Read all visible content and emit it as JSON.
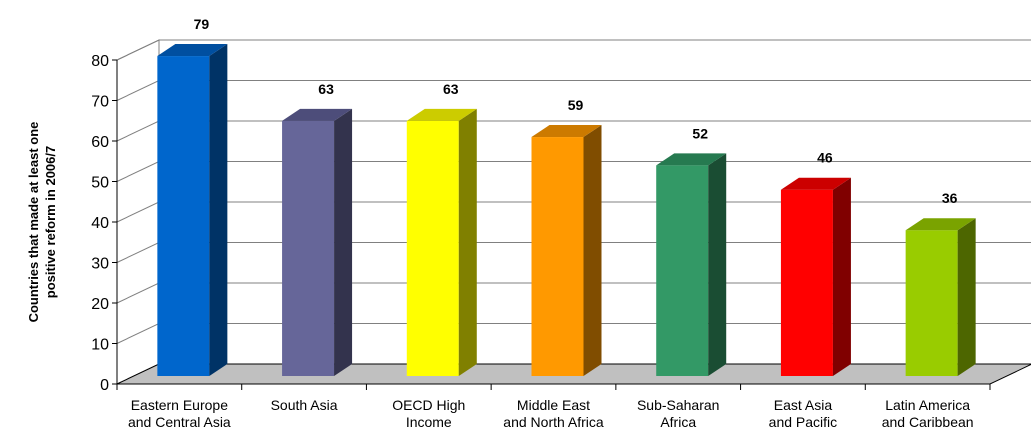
{
  "chart_data": {
    "type": "bar",
    "style": "3d-column",
    "title": "",
    "ylabel": [
      "Countries that made at least one",
      "positive reform in 2006/7"
    ],
    "xlabel": "",
    "ylim": [
      0,
      80
    ],
    "yticks": [
      0,
      10,
      20,
      30,
      40,
      50,
      60,
      70,
      80
    ],
    "grid": true,
    "legend": "none",
    "categories": [
      [
        "Eastern Europe",
        "and Central Asia"
      ],
      [
        "South Asia"
      ],
      [
        "OECD High",
        "Income"
      ],
      [
        "Middle East",
        "and North Africa"
      ],
      [
        "Sub-Saharan",
        "Africa"
      ],
      [
        "East Asia",
        "and Pacific"
      ],
      [
        "Latin America",
        "and Caribbean"
      ]
    ],
    "values": [
      79,
      63,
      63,
      59,
      52,
      46,
      36
    ],
    "value_labels": [
      "79",
      "63",
      "63",
      "59",
      "52",
      "46",
      "36"
    ],
    "colors": [
      {
        "front": "#0066cc",
        "top": "#004fa0",
        "side": "#003366"
      },
      {
        "front": "#666699",
        "top": "#4d4d7a",
        "side": "#33334d"
      },
      {
        "front": "#ffff00",
        "top": "#cccc00",
        "side": "#808000"
      },
      {
        "front": "#ff9900",
        "top": "#cc7a00",
        "side": "#804d00"
      },
      {
        "front": "#339966",
        "top": "#267a50",
        "side": "#1a4d33"
      },
      {
        "front": "#ff0000",
        "top": "#cc0000",
        "side": "#800000"
      },
      {
        "front": "#99cc00",
        "top": "#7aa300",
        "side": "#4d6600"
      }
    ],
    "floor_color": "#c0c0c0"
  }
}
